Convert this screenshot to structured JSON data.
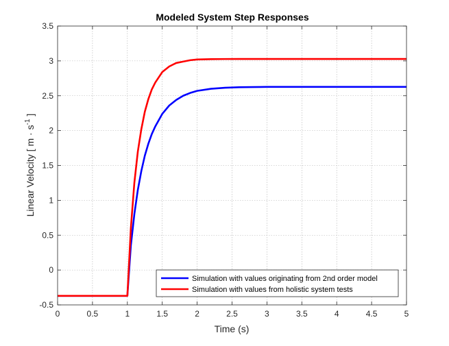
{
  "chart_data": {
    "type": "line",
    "title": "Modeled System Step Responses",
    "xlabel": "Time (s)",
    "ylabel": {
      "base": "Linear Velocity [ m · s",
      "superscript": "-1",
      "suffix": " ]"
    },
    "xlim": [
      0,
      5
    ],
    "ylim": [
      -0.5,
      3.5
    ],
    "xticks": [
      0,
      0.5,
      1,
      1.5,
      2,
      2.5,
      3,
      3.5,
      4,
      4.5,
      5
    ],
    "xtick_labels": [
      "0",
      "0.5",
      "1",
      "1.5",
      "2",
      "2.5",
      "3",
      "3.5",
      "4",
      "4.5",
      "5"
    ],
    "yticks": [
      -0.5,
      0,
      0.5,
      1,
      1.5,
      2,
      2.5,
      3,
      3.5
    ],
    "ytick_labels": [
      "-0.5",
      "0",
      "0.5",
      "1",
      "1.5",
      "2",
      "2.5",
      "3",
      "3.5"
    ],
    "grid": true,
    "legend_location": "bottom-right",
    "series": [
      {
        "name": "Simulation with values originating from 2nd order model",
        "color": "#0000ff",
        "x": [
          0,
          1.0,
          1.05,
          1.1,
          1.15,
          1.2,
          1.25,
          1.3,
          1.35,
          1.4,
          1.5,
          1.6,
          1.7,
          1.8,
          1.9,
          2.0,
          2.2,
          2.4,
          2.6,
          2.8,
          3.0,
          3.5,
          4.0,
          4.5,
          5.0
        ],
        "y": [
          -0.37,
          -0.37,
          0.35,
          0.8,
          1.15,
          1.42,
          1.64,
          1.81,
          1.95,
          2.06,
          2.24,
          2.36,
          2.44,
          2.5,
          2.54,
          2.57,
          2.6,
          2.615,
          2.622,
          2.625,
          2.627,
          2.627,
          2.627,
          2.627,
          2.627
        ]
      },
      {
        "name": "Simulation with values from holistic system tests",
        "color": "#ff0000",
        "x": [
          0,
          1.0,
          1.05,
          1.1,
          1.15,
          1.2,
          1.25,
          1.3,
          1.35,
          1.4,
          1.5,
          1.6,
          1.7,
          1.8,
          1.9,
          2.0,
          2.2,
          2.4,
          2.6,
          2.8,
          3.0,
          3.5,
          4.0,
          4.5,
          5.0
        ],
        "y": [
          -0.37,
          -0.37,
          0.6,
          1.25,
          1.7,
          2.02,
          2.27,
          2.45,
          2.59,
          2.69,
          2.84,
          2.92,
          2.97,
          2.99,
          3.01,
          3.02,
          3.025,
          3.027,
          3.028,
          3.028,
          3.028,
          3.028,
          3.028,
          3.028,
          3.028
        ]
      }
    ]
  }
}
